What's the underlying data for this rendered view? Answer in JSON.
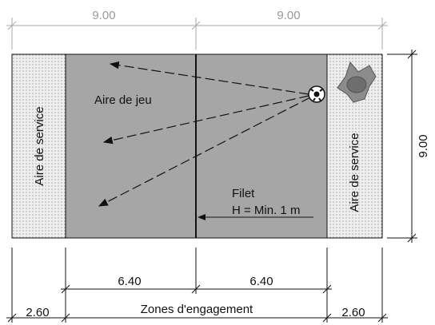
{
  "dimensions": {
    "top_left": "9.00",
    "top_right": "9.00",
    "side": "9.00",
    "zone_left": "6.40",
    "zone_right": "6.40",
    "service_left": "2.60",
    "service_right": "2.60"
  },
  "labels": {
    "service_left": "Aire de service",
    "service_right": "Aire de service",
    "play": "Aire de jeu",
    "net": "Filet",
    "net_height": "H = Min. 1 m",
    "zones": "Zones d'engagement"
  }
}
